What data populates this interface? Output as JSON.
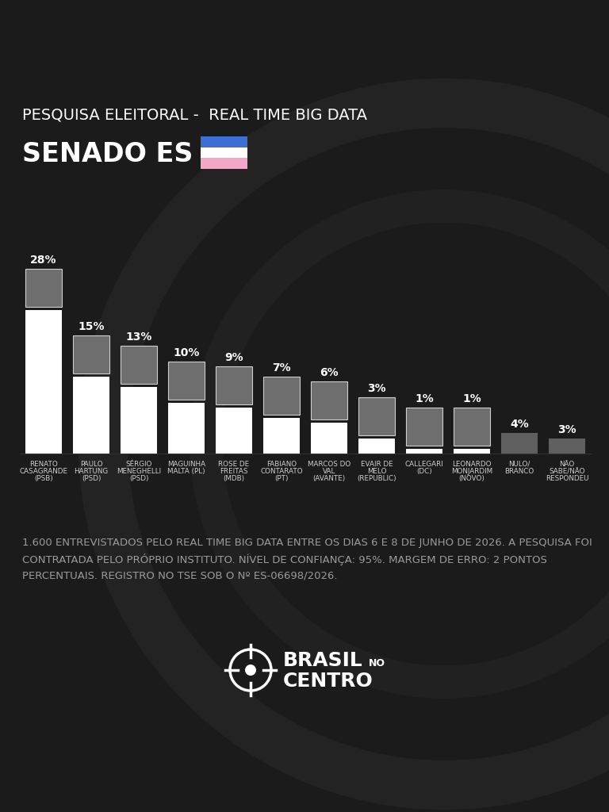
{
  "chart_data": {
    "type": "bar",
    "title": "PESQUISA ELEITORAL -  REAL TIME BIG DATA",
    "subtitle": "SENADO ES",
    "categories": [
      "RENATO\nCASAGRANDE\n(PSB)",
      "PAULO\nHARTUNG\n(PSD)",
      "SÉRGIO\nMENEGHELLI\n(PSD)",
      "MAGUINHA\nMALTA (PL)",
      "ROSE DE\nFREITAS\n(MDB)",
      "FABIANO\nCONTARATO\n(PT)",
      "MARCOS DO\nVAL\n(AVANTE)",
      "EVAIR DE\nMELO\n(REPUBLIC)",
      "CALLEGARI\n(DC)",
      "LEONARDO\nMONJARDIM\n(NOVO)",
      "NULO/\nBRANCO",
      "NÃO\nSABE/NÃO\nRESPONDEU"
    ],
    "values": [
      28,
      15,
      13,
      10,
      9,
      7,
      6,
      3,
      1,
      1,
      4,
      3
    ],
    "value_labels": [
      "28%",
      "15%",
      "13%",
      "10%",
      "9%",
      "7%",
      "6%",
      "3%",
      "1%",
      "1%",
      "4%",
      "3%"
    ],
    "colors": [
      "#ffffff",
      "#ffffff",
      "#ffffff",
      "#ffffff",
      "#ffffff",
      "#ffffff",
      "#ffffff",
      "#ffffff",
      "#ffffff",
      "#ffffff",
      "#5f5f5f",
      "#5f5f5f"
    ],
    "data_labels": true,
    "tick_labels": "x",
    "grid": false,
    "footnote": "1.600 ENTREVISTADOS PELO REAL TIME BIG DATA ENTRE OS DIAS 6 E 8 DE JUNHO DE 2026. A PESQUISA FOI CONTRATADA PELO PRÓPRIO INSTITUTO. NÍVEL DE CONFIANÇA: 95%. MARGEM DE ERRO: 2 PONTOS PERCENTUAIS. REGISTRO NO TSE SOB O Nº ES-06698/2026.",
    "logo": [
      "BRASIL",
      "NO",
      "CENTRO"
    ]
  }
}
